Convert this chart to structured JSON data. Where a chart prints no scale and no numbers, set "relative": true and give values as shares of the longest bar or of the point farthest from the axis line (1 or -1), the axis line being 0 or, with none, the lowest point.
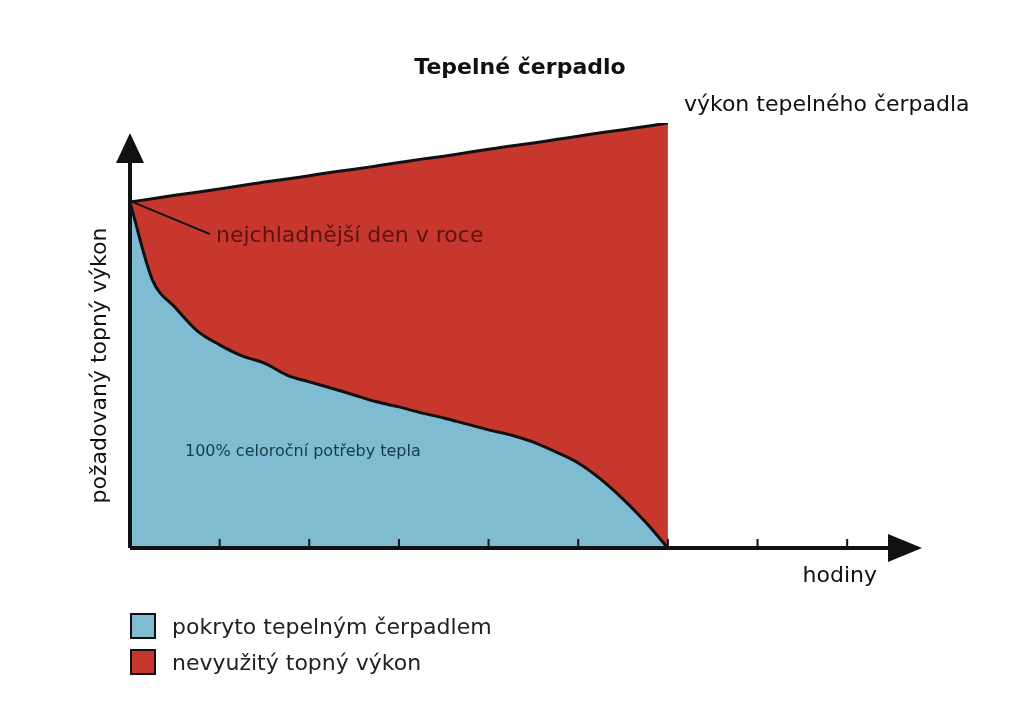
{
  "chart_data": {
    "type": "area",
    "title": "Tepelné čerpadlo",
    "xlabel": "hodiny",
    "ylabel": "požadovaný topný výkon",
    "relative": true,
    "stacked": true,
    "legend": "bottom left",
    "categories": [
      null,
      null,
      null,
      null,
      null,
      null,
      null,
      null,
      null,
      null,
      null,
      null,
      null,
      null,
      null,
      null,
      null,
      null,
      null,
      null,
      null,
      null,
      null,
      null,
      null,
      null,
      null,
      null,
      null,
      null,
      null,
      null,
      null,
      null,
      null
    ],
    "series": [
      {
        "name": "pokryto tepelným čerpadlem",
        "color": "#7fbcd2",
        "values": [
          0.814,
          0.631,
          0.567,
          0.511,
          0.478,
          0.452,
          0.435,
          0.407,
          0.391,
          0.376,
          0.36,
          0.344,
          0.332,
          0.318,
          0.306,
          0.292,
          0.278,
          0.266,
          0.249,
          0.226,
          0.2,
          0.162,
          0.115,
          0.061,
          0,
          null,
          null,
          null,
          null,
          null,
          null,
          null,
          null,
          null,
          null
        ]
      },
      {
        "name": "nevyužitý topný výkon",
        "color": "#c8372d",
        "values": [
          0,
          0.191,
          0.263,
          0.326,
          0.367,
          0.401,
          0.426,
          0.461,
          0.485,
          0.508,
          0.531,
          0.555,
          0.575,
          0.597,
          0.616,
          0.638,
          0.66,
          0.68,
          0.704,
          0.735,
          0.769,
          0.815,
          0.869,
          0.931,
          1,
          null,
          null,
          null,
          null,
          null,
          null,
          null,
          null,
          null,
          null
        ]
      }
    ],
    "annotations": [
      "nejchladnější den v roce",
      "výkon tepelného čerpadla",
      "100% celoroční potřeby tepla"
    ]
  }
}
